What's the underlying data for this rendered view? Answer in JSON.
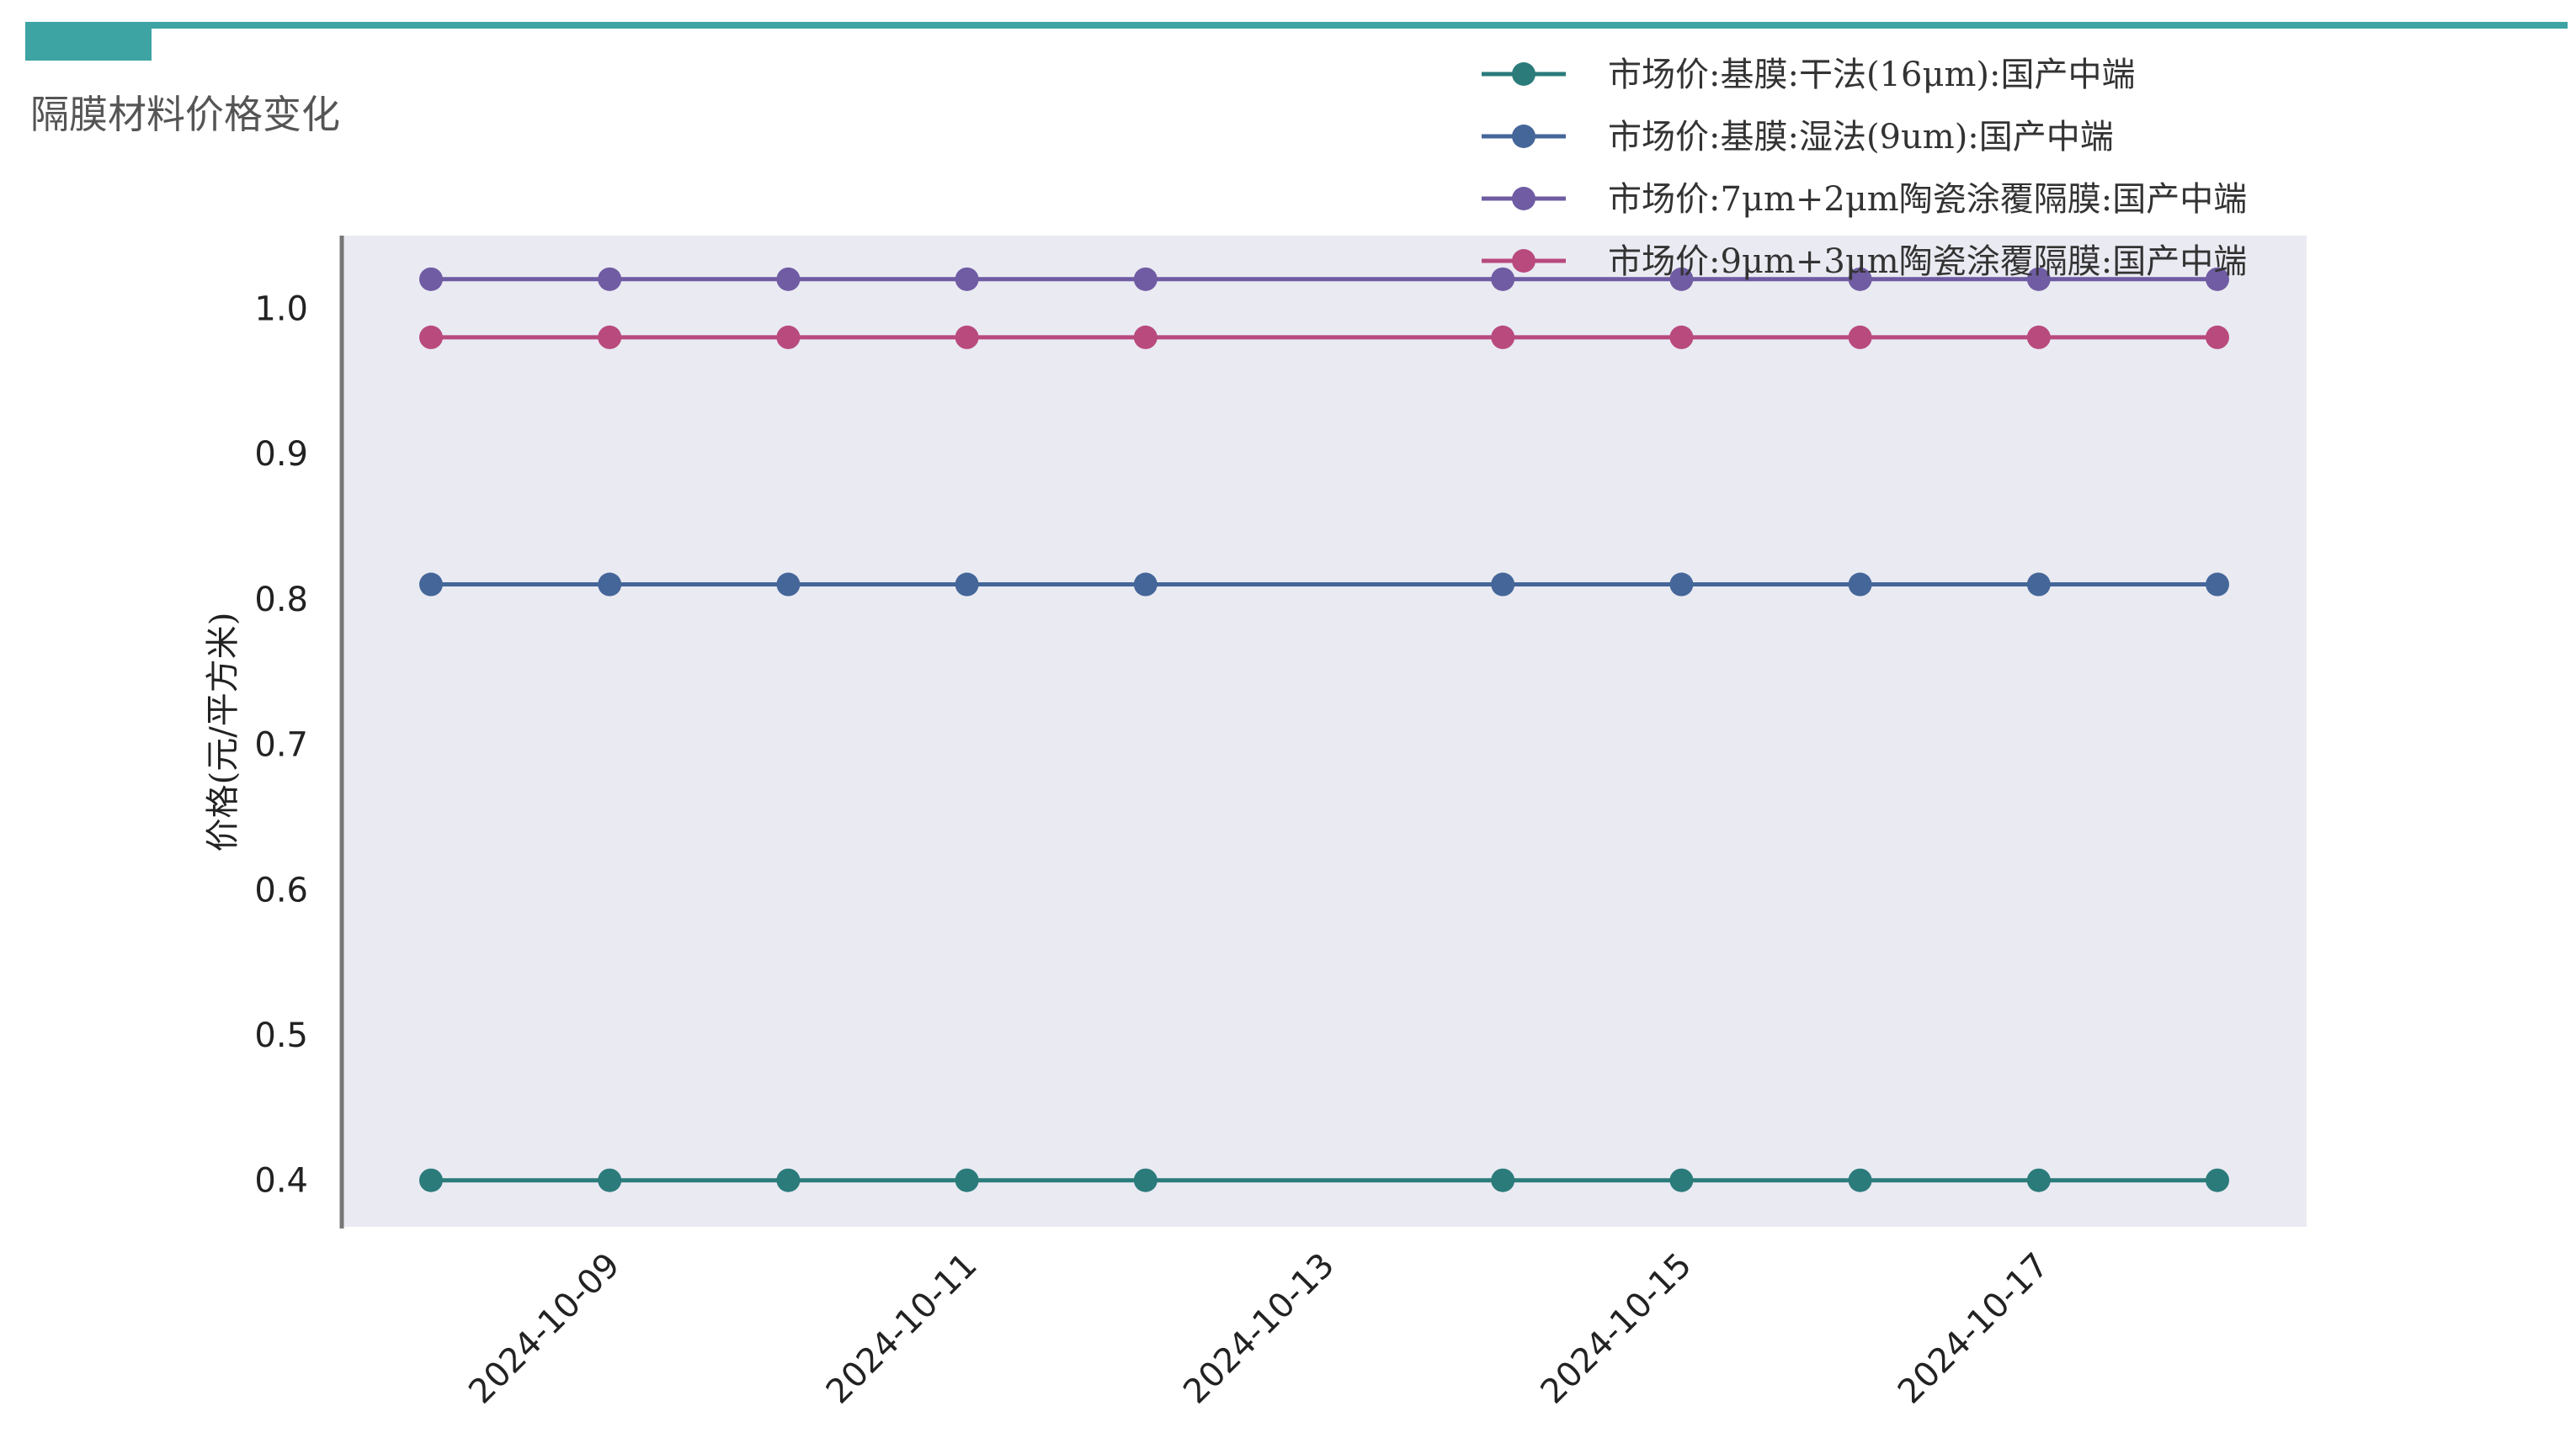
{
  "page_title": "隔膜材料价格变化",
  "colors": {
    "accent": "#3ea3a3",
    "plot_background": "#eaeaf2",
    "axis_line": "#777777"
  },
  "chart_data": {
    "type": "line",
    "title": "",
    "xlabel": "",
    "ylabel": "价格(元/平方米)",
    "x": [
      "2024-10-08",
      "2024-10-09",
      "2024-10-10",
      "2024-10-11",
      "2024-10-12",
      "2024-10-14",
      "2024-10-15",
      "2024-10-16",
      "2024-10-17",
      "2024-10-18"
    ],
    "x_ticks": [
      "2024-10-09",
      "2024-10-11",
      "2024-10-13",
      "2024-10-15",
      "2024-10-17"
    ],
    "y_ticks": [
      "0.4",
      "0.5",
      "0.6",
      "0.7",
      "0.8",
      "0.9",
      "1.0"
    ],
    "ylim": [
      0.368,
      1.05
    ],
    "grid": false,
    "legend_position": "top-right",
    "series": [
      {
        "name": "市场价:基膜:干法(16μm):国产中端",
        "color": "#2b7b7b",
        "values": [
          0.4,
          0.4,
          0.4,
          0.4,
          0.4,
          0.4,
          0.4,
          0.4,
          0.4,
          0.4
        ]
      },
      {
        "name": "市场价:基膜:湿法(9um):国产中端",
        "color": "#456699",
        "values": [
          0.81,
          0.81,
          0.81,
          0.81,
          0.81,
          0.81,
          0.81,
          0.81,
          0.81,
          0.81
        ]
      },
      {
        "name": "市场价:7μm+2μm陶瓷涂覆隔膜:国产中端",
        "color": "#6f5ca3",
        "values": [
          1.02,
          1.02,
          1.02,
          1.02,
          1.02,
          1.02,
          1.02,
          1.02,
          1.02,
          1.02
        ]
      },
      {
        "name": "市场价:9μm+3μm陶瓷涂覆隔膜:国产中端",
        "color": "#b84a7e",
        "values": [
          0.98,
          0.98,
          0.98,
          0.98,
          0.98,
          0.98,
          0.98,
          0.98,
          0.98,
          0.98
        ]
      }
    ]
  }
}
